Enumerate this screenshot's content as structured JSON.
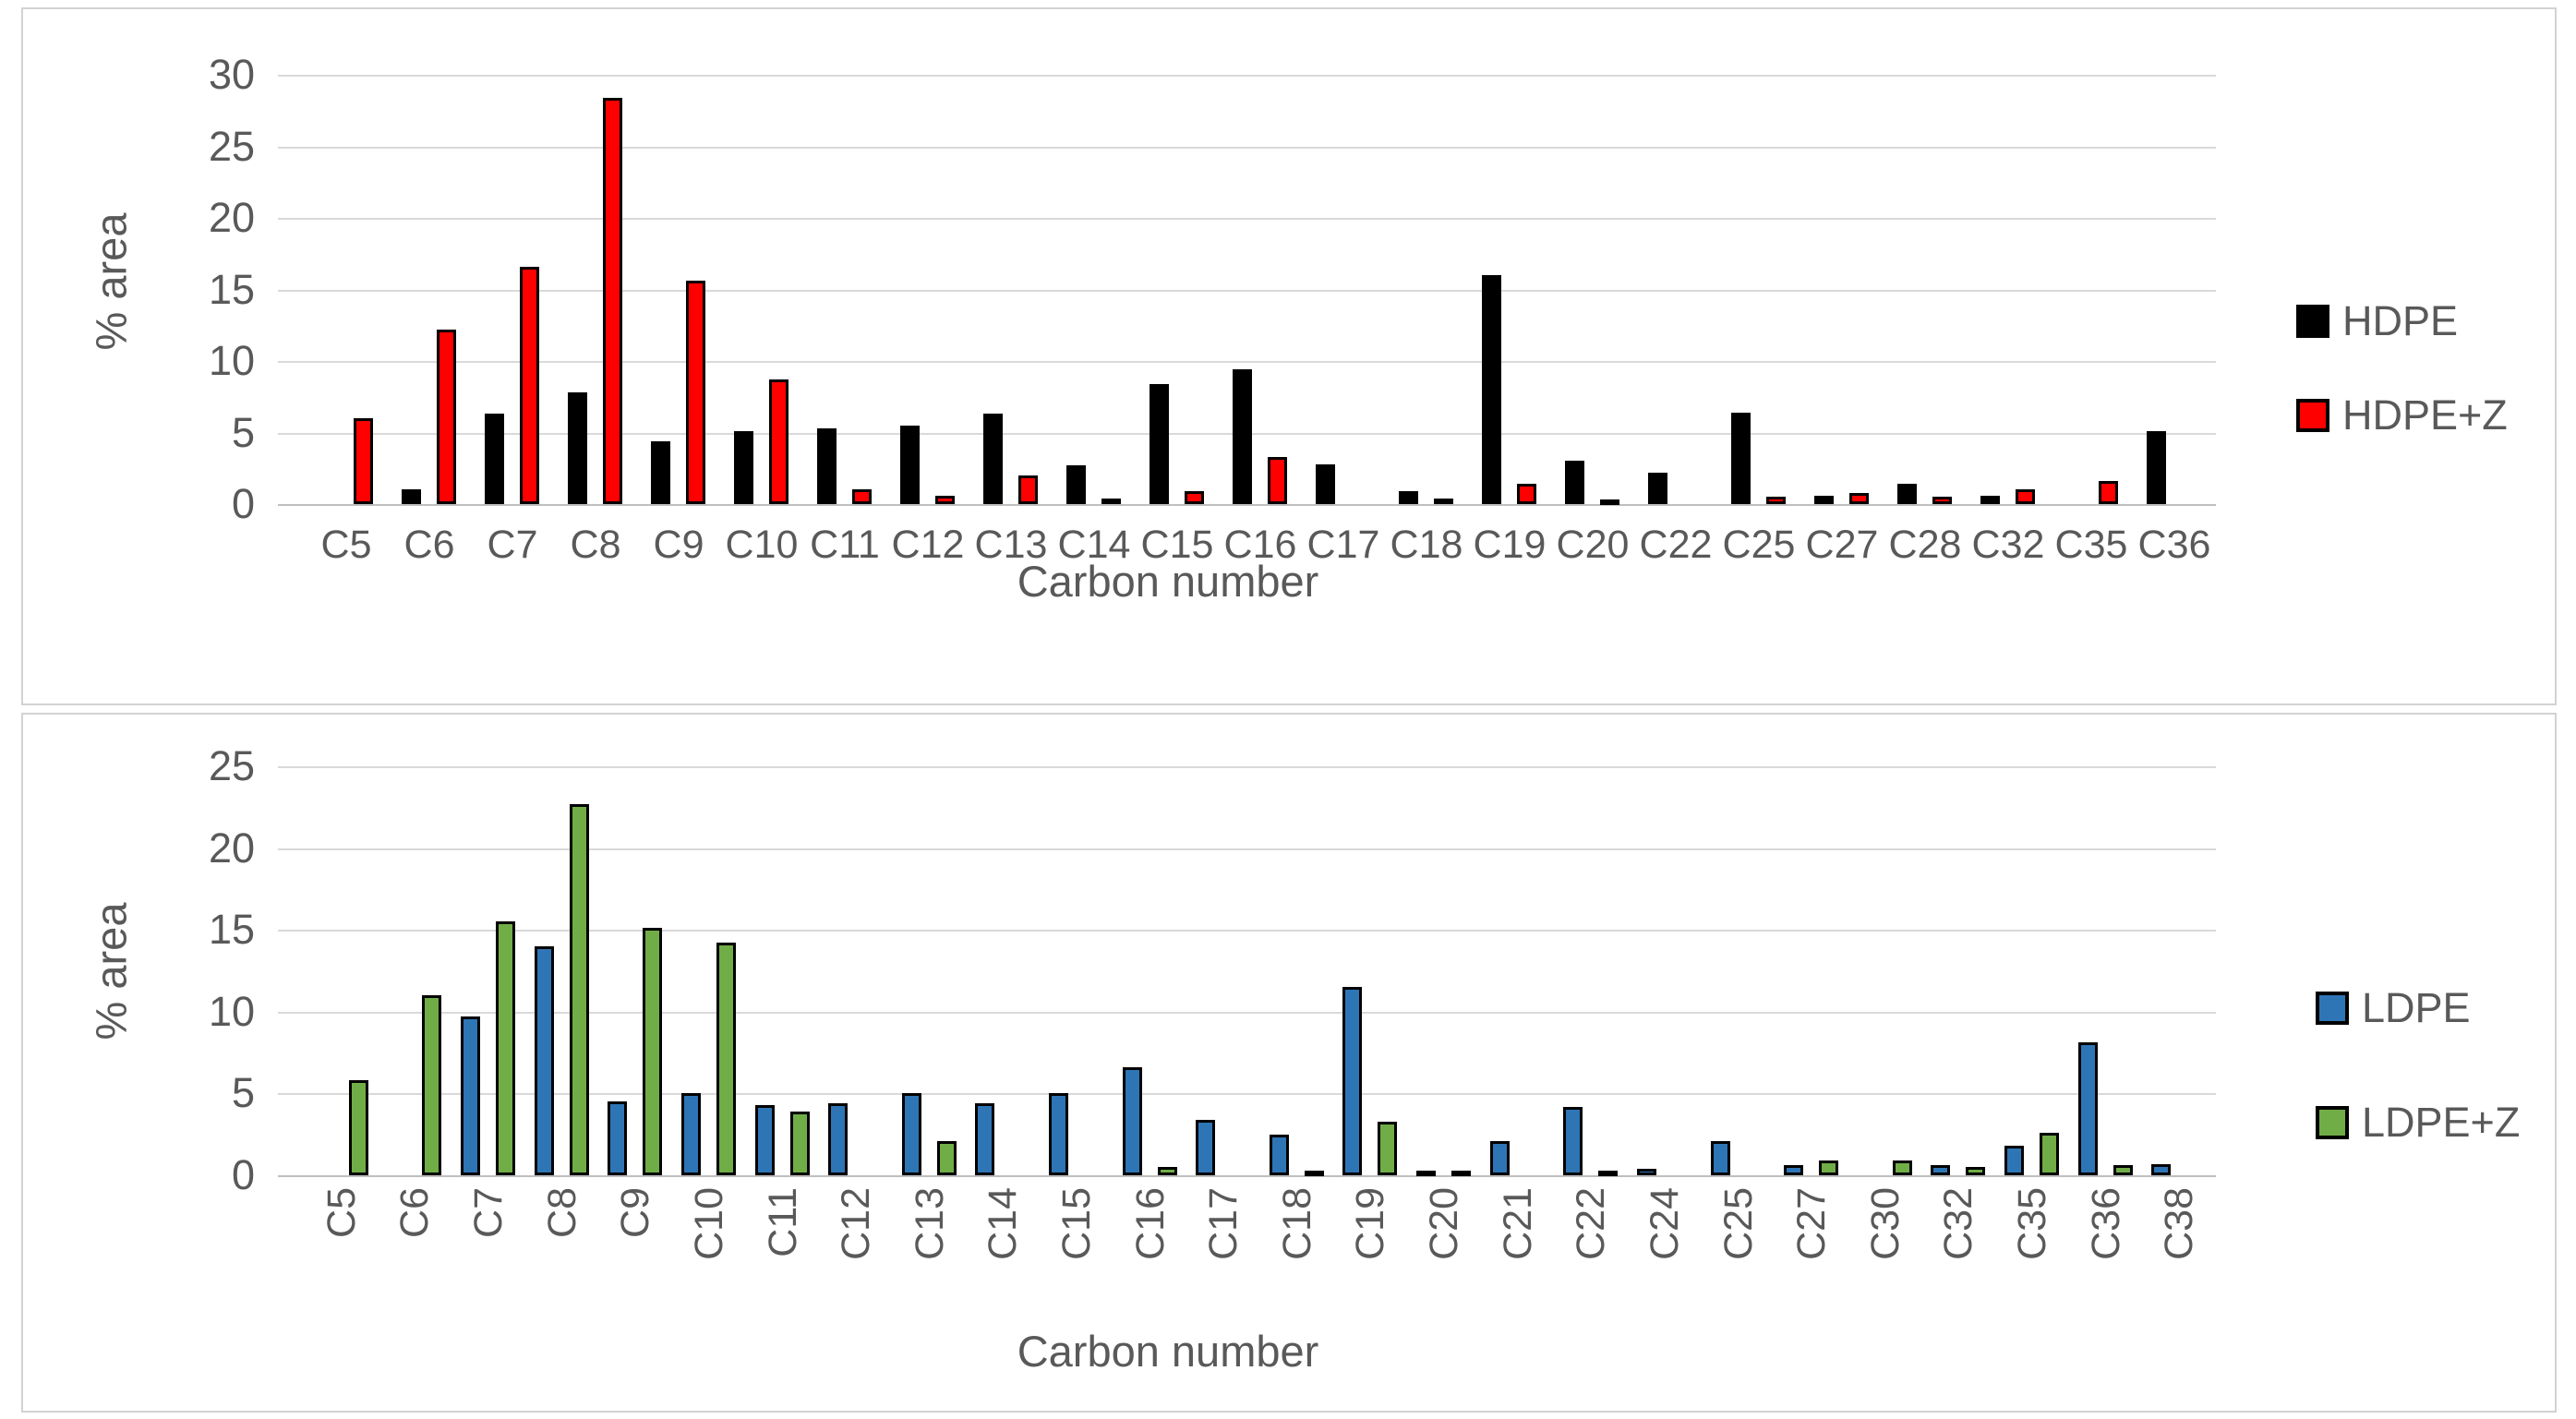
{
  "chart_data": [
    {
      "type": "bar",
      "title": "",
      "xlabel": "Carbon number",
      "ylabel": "% area",
      "ylim": [
        0,
        30
      ],
      "yticks": [
        0,
        5,
        10,
        15,
        20,
        25,
        30
      ],
      "grid": true,
      "legend_position": "right",
      "categories": [
        "C5",
        "C6",
        "C7",
        "C8",
        "C9",
        "C10",
        "C11",
        "C12",
        "C13",
        "C14",
        "C15",
        "C16",
        "C17",
        "C18",
        "C19",
        "C20",
        "C22",
        "C25",
        "C27",
        "C28",
        "C32",
        "C35",
        "C36"
      ],
      "series": [
        {
          "name": "HDPE",
          "color": "#000000",
          "values": [
            0,
            1.0,
            6.3,
            7.8,
            4.4,
            5.1,
            5.3,
            5.5,
            6.3,
            2.7,
            8.4,
            9.4,
            2.8,
            0.9,
            16.0,
            3.0,
            2.2,
            6.4,
            0.6,
            1.4,
            0.6,
            0,
            5.1
          ]
        },
        {
          "name": "HDPE+Z",
          "color": "#ff0000",
          "values": [
            6.0,
            12.2,
            16.6,
            28.4,
            15.6,
            8.7,
            1.0,
            0.6,
            2.0,
            0.4,
            0.9,
            3.3,
            0,
            0.4,
            1.4,
            0.3,
            0,
            0.5,
            0.8,
            0.5,
            1.0,
            1.6,
            0
          ]
        }
      ]
    },
    {
      "type": "bar",
      "title": "",
      "xlabel": "Carbon number",
      "ylabel": "% area",
      "ylim": [
        0,
        25
      ],
      "yticks": [
        0,
        5,
        10,
        15,
        20,
        25
      ],
      "grid": true,
      "legend_position": "right",
      "categories": [
        "C5",
        "C6",
        "C7",
        "C8",
        "C9",
        "C10",
        "C11",
        "C12",
        "C13",
        "C14",
        "C15",
        "C16",
        "C17",
        "C18",
        "C19",
        "C20",
        "C21",
        "C22",
        "C24",
        "C25",
        "C27",
        "C30",
        "C32",
        "C35",
        "C36",
        "C38"
      ],
      "series": [
        {
          "name": "LDPE",
          "color": "#2e75b6",
          "values": [
            0,
            0,
            9.7,
            14.0,
            4.5,
            5.0,
            4.3,
            4.4,
            5.0,
            4.4,
            5.0,
            6.6,
            3.4,
            2.5,
            11.5,
            0.3,
            2.1,
            4.2,
            0.4,
            2.1,
            0.6,
            0,
            0.6,
            1.8,
            8.1,
            0.7
          ]
        },
        {
          "name": "LDPE+Z",
          "color": "#70ad47",
          "values": [
            5.8,
            11.0,
            15.5,
            22.7,
            15.1,
            14.2,
            3.9,
            0,
            2.1,
            0,
            0,
            0.5,
            0,
            0.3,
            3.3,
            0.2,
            0,
            0.3,
            0,
            0,
            0.9,
            0.9,
            0.5,
            2.6,
            0.6,
            0
          ]
        }
      ]
    }
  ]
}
